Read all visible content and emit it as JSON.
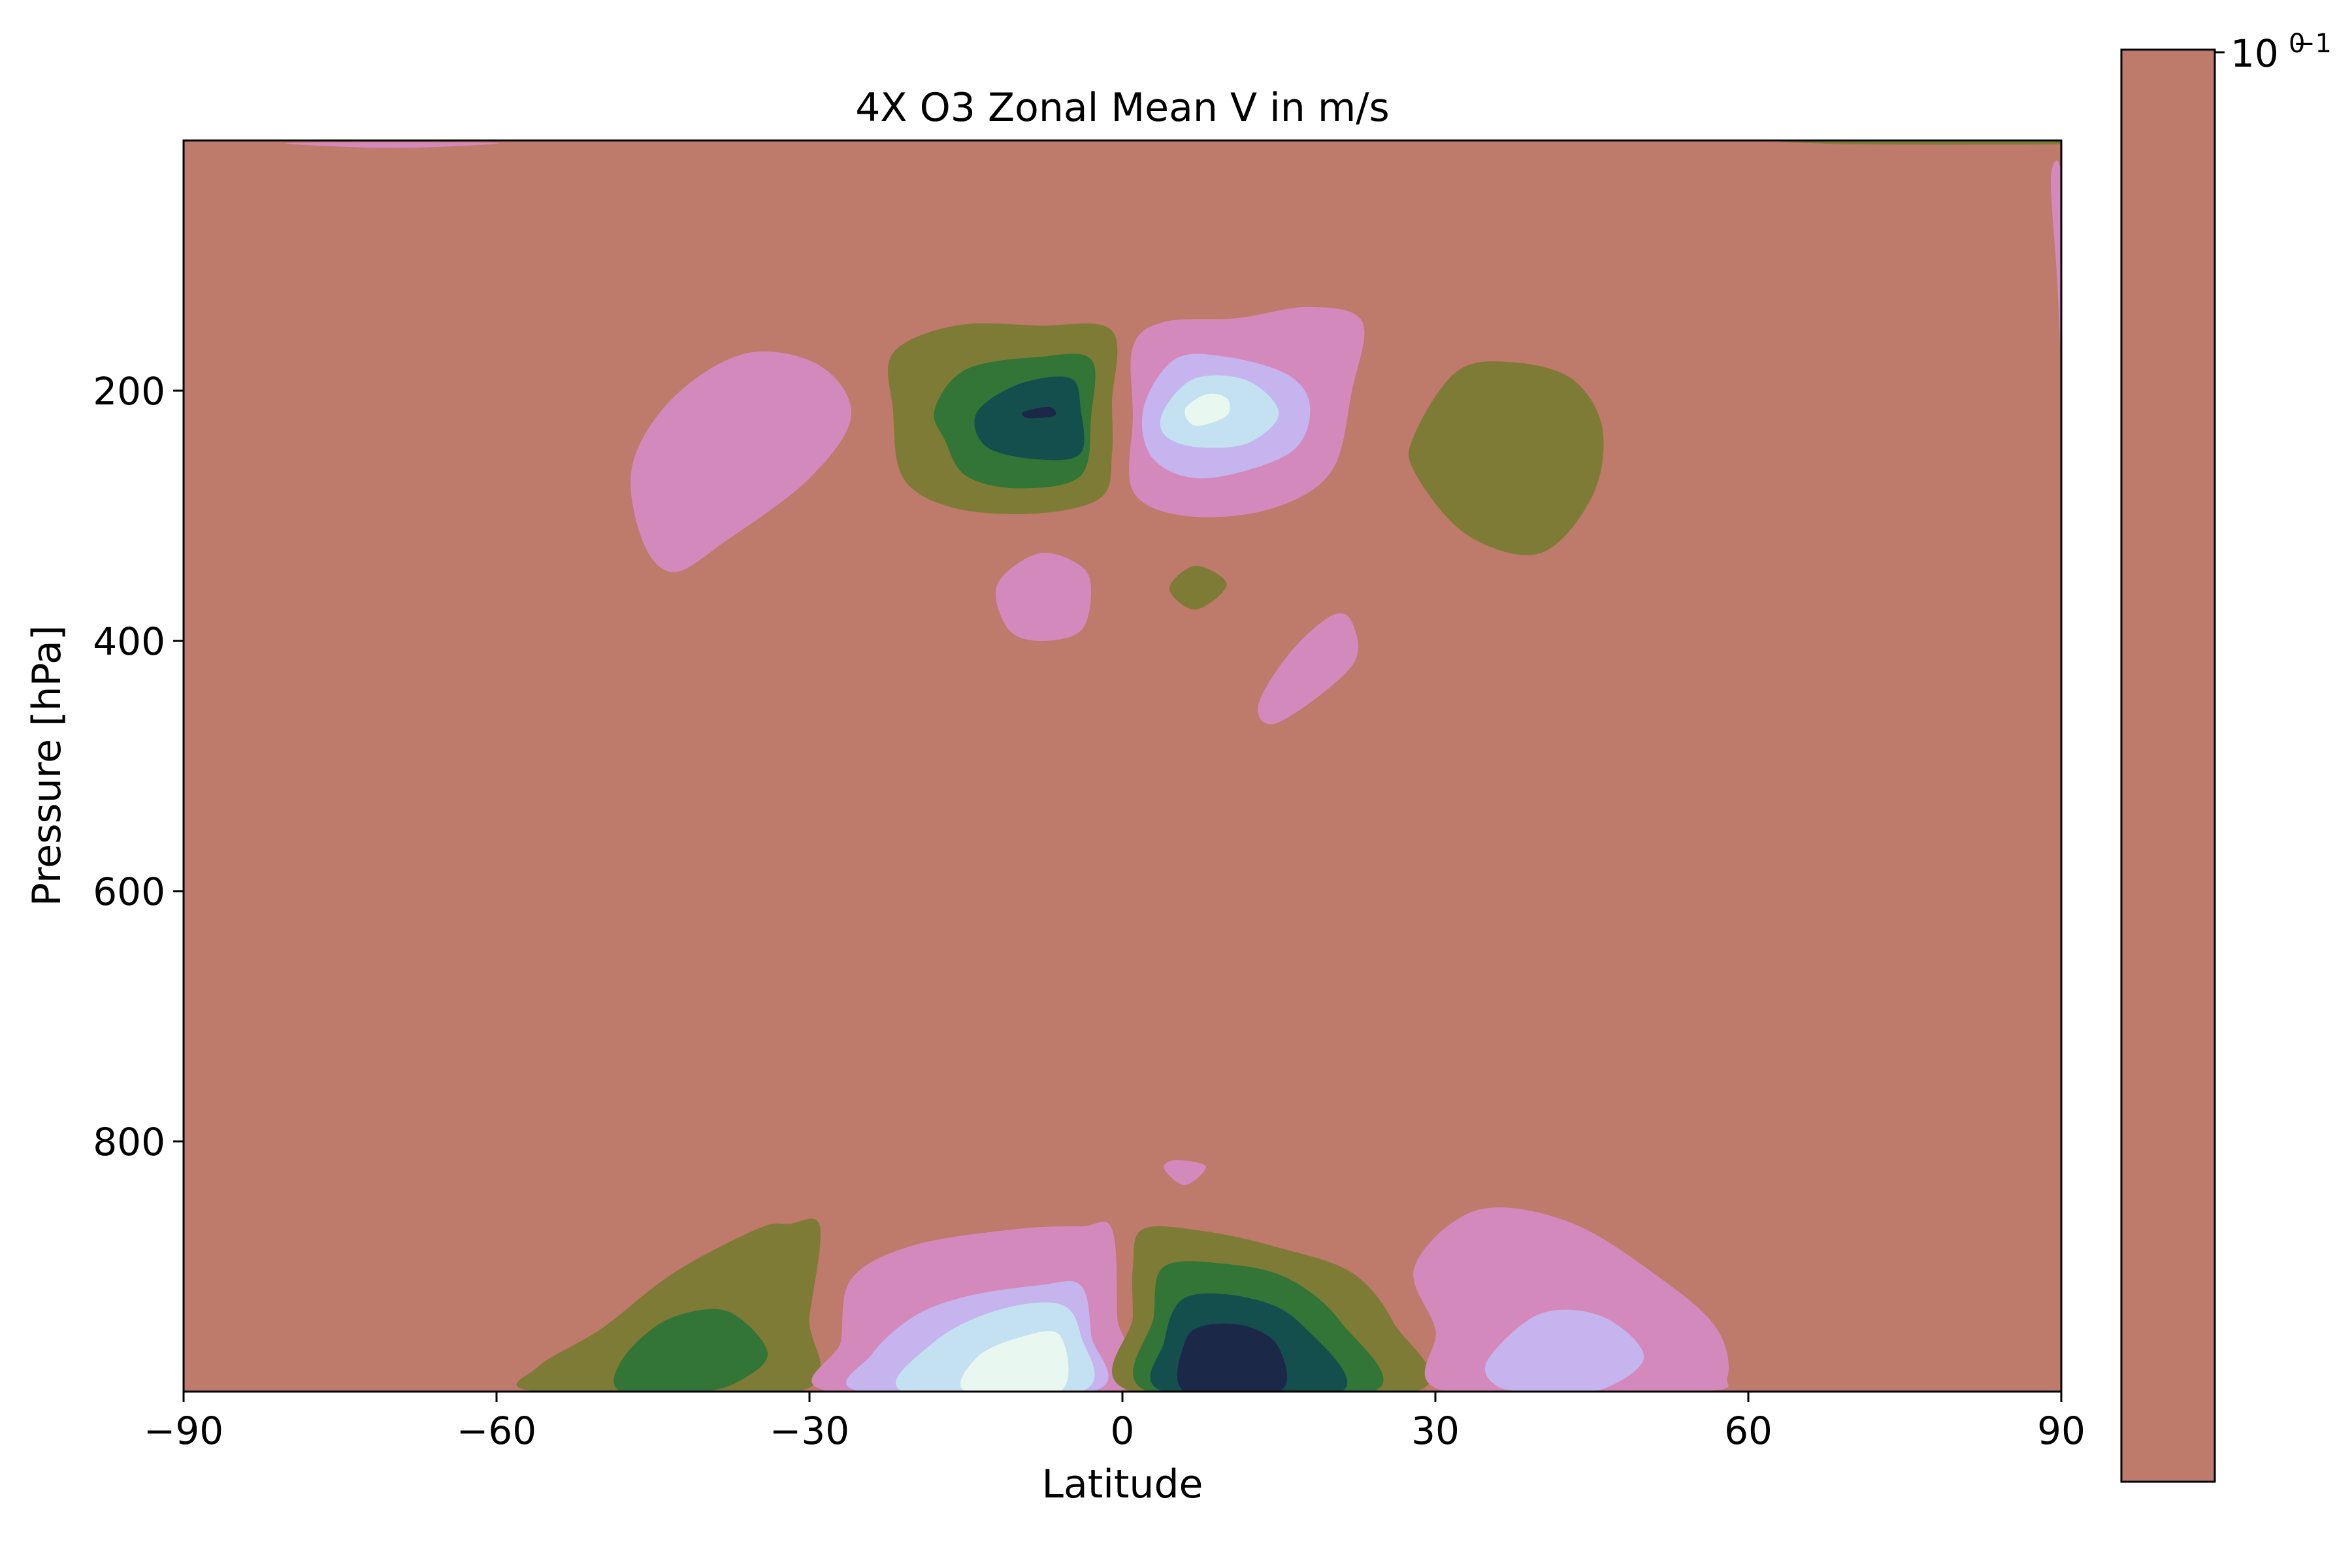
{
  "chart_data": {
    "type": "contour",
    "title": "4X O3 Zonal Mean V in m/s",
    "xlabel": "Latitude",
    "ylabel": "Pressure [hPa]",
    "xlim": [
      -90,
      90
    ],
    "ylim": [
      1000,
      0
    ],
    "y_inverted": true,
    "xticks": [
      -90,
      -60,
      -30,
      0,
      30,
      60,
      90
    ],
    "xtick_labels": [
      "−90",
      "−60",
      "−30",
      "0",
      "30",
      "60",
      "90"
    ],
    "yticks": [
      200,
      400,
      600,
      800
    ],
    "ytick_labels": [
      "200",
      "400",
      "600",
      "800"
    ],
    "colorbar": {
      "tick_labels": [
        "10",
        "0",
        "−1"
      ],
      "background_color": "#be7a6a"
    },
    "colors": {
      "background": "#be7a6a",
      "olive": "#7e7b37",
      "green": "#327536",
      "dark_teal": "#154f4d",
      "navy": "#1c2848",
      "pink": "#d489bc",
      "lavender": "#c5b4ee",
      "light_blue": "#c4e1f1",
      "mint": "#e8f7ef"
    },
    "contours": [
      {
        "color": "olive",
        "points": [
          [
            -35,
            870
          ],
          [
            -32,
            866
          ],
          [
            -29,
            868
          ],
          [
            -30,
            940
          ],
          [
            -31,
            1000
          ],
          [
            -56,
            1000
          ],
          [
            -56,
            980
          ],
          [
            -50,
            950
          ],
          [
            -43,
            905
          ]
        ]
      },
      {
        "color": "green",
        "points": [
          [
            -48,
            975
          ],
          [
            -44,
            944
          ],
          [
            -39,
            934
          ],
          [
            -36,
            946
          ],
          [
            -34,
            970
          ],
          [
            -36,
            988
          ],
          [
            -40,
            1000
          ],
          [
            -48,
            1000
          ]
        ]
      },
      {
        "color": "pink",
        "points": [
          [
            -26,
            910
          ],
          [
            -20,
            883
          ],
          [
            -10,
            870
          ],
          [
            -4,
            868
          ],
          [
            -1,
            870
          ],
          [
            -0.5,
            940
          ],
          [
            -0.5,
            1000
          ],
          [
            -28,
            1000
          ],
          [
            -27,
            960
          ]
        ]
      },
      {
        "color": "lavender",
        "points": [
          [
            -24,
            970
          ],
          [
            -20,
            940
          ],
          [
            -15,
            924
          ],
          [
            -8,
            915
          ],
          [
            -4,
            915
          ],
          [
            -3,
            955
          ],
          [
            -3,
            1000
          ],
          [
            -25,
            1000
          ]
        ]
      },
      {
        "color": "light_blue",
        "points": [
          [
            -21,
            1000
          ],
          [
            -18,
            960
          ],
          [
            -12,
            935
          ],
          [
            -6,
            930
          ],
          [
            -4,
            955
          ],
          [
            -4,
            1000
          ]
        ]
      },
      {
        "color": "mint",
        "points": [
          [
            -15,
            1000
          ],
          [
            -14,
            973
          ],
          [
            -10,
            957
          ],
          [
            -6,
            955
          ],
          [
            -6,
            1000
          ]
        ]
      },
      {
        "color": "olive",
        "points": [
          [
            1,
            1000
          ],
          [
            1,
            940
          ],
          [
            1,
            900
          ],
          [
            2,
            870
          ],
          [
            8,
            872
          ],
          [
            15,
            885
          ],
          [
            22,
            905
          ],
          [
            26,
            945
          ],
          [
            28,
            1000
          ]
        ]
      },
      {
        "color": "green",
        "points": [
          [
            2.5,
            1000
          ],
          [
            3,
            940
          ],
          [
            4,
            900
          ],
          [
            10,
            898
          ],
          [
            16,
            910
          ],
          [
            21,
            945
          ],
          [
            24,
            1000
          ]
        ]
      },
      {
        "color": "dark_teal",
        "points": [
          [
            4,
            1000
          ],
          [
            4,
            960
          ],
          [
            6,
            925
          ],
          [
            12,
            925
          ],
          [
            17,
            945
          ],
          [
            21,
            1000
          ]
        ]
      },
      {
        "color": "navy",
        "points": [
          [
            6,
            1000
          ],
          [
            6,
            960
          ],
          [
            8,
            947
          ],
          [
            12,
            948
          ],
          [
            15,
            965
          ],
          [
            15,
            1000
          ]
        ]
      },
      {
        "color": "pink",
        "points": [
          [
            28,
            900
          ],
          [
            34,
            855
          ],
          [
            43,
            865
          ],
          [
            52,
            912
          ],
          [
            57,
            950
          ],
          [
            58,
            988
          ],
          [
            55,
            1000
          ],
          [
            31,
            1000
          ],
          [
            30,
            950
          ]
        ]
      },
      {
        "color": "lavender",
        "points": [
          [
            35,
            975
          ],
          [
            40,
            938
          ],
          [
            46,
            940
          ],
          [
            50,
            972
          ],
          [
            46,
            998
          ],
          [
            40,
            1000
          ],
          [
            36,
            996
          ]
        ]
      },
      {
        "color": "pink",
        "points": [
          [
            5,
            815
          ],
          [
            8,
            820
          ],
          [
            6,
            835
          ],
          [
            4,
            822
          ]
        ]
      },
      {
        "color": "olive",
        "points": [
          [
            -22,
            170
          ],
          [
            -16,
            148
          ],
          [
            -8,
            148
          ],
          [
            -1,
            152
          ],
          [
            -1,
            210
          ],
          [
            -1,
            250
          ],
          [
            -2,
            285
          ],
          [
            -8,
            298
          ],
          [
            -16,
            294
          ],
          [
            -21,
            270
          ],
          [
            -22,
            215
          ]
        ]
      },
      {
        "color": "green",
        "points": [
          [
            -18,
            215
          ],
          [
            -15,
            183
          ],
          [
            -8,
            173
          ],
          [
            -3,
            175
          ],
          [
            -3,
            220
          ],
          [
            -4,
            268
          ],
          [
            -10,
            278
          ],
          [
            -15,
            268
          ],
          [
            -17,
            240
          ]
        ]
      },
      {
        "color": "dark_teal",
        "points": [
          [
            -14,
            218
          ],
          [
            -10,
            195
          ],
          [
            -5,
            190
          ],
          [
            -4,
            215
          ],
          [
            -4,
            250
          ],
          [
            -8,
            255
          ],
          [
            -13,
            245
          ]
        ]
      },
      {
        "color": "navy",
        "points": [
          [
            -9.5,
            217
          ],
          [
            -7,
            213
          ],
          [
            -6.5,
            220
          ],
          [
            -9,
            222
          ]
        ]
      },
      {
        "color": "pink",
        "points": [
          [
            1,
            165
          ],
          [
            4,
            145
          ],
          [
            11,
            142
          ],
          [
            18,
            133
          ],
          [
            23,
            145
          ],
          [
            22,
            200
          ],
          [
            20,
            265
          ],
          [
            14,
            295
          ],
          [
            6,
            300
          ],
          [
            1,
            280
          ],
          [
            1,
            220
          ]
        ]
      },
      {
        "color": "lavender",
        "points": [
          [
            2,
            215
          ],
          [
            5,
            175
          ],
          [
            10,
            173
          ],
          [
            16,
            188
          ],
          [
            18,
            215
          ],
          [
            16,
            250
          ],
          [
            8,
            270
          ],
          [
            3,
            255
          ]
        ]
      },
      {
        "color": "light_blue",
        "points": [
          [
            4,
            215
          ],
          [
            7,
            190
          ],
          [
            12,
            192
          ],
          [
            15,
            218
          ],
          [
            12,
            242
          ],
          [
            7,
            245
          ],
          [
            4,
            235
          ]
        ]
      },
      {
        "color": "mint",
        "points": [
          [
            6,
            215
          ],
          [
            8,
            203
          ],
          [
            10,
            206
          ],
          [
            10,
            220
          ],
          [
            7,
            228
          ]
        ]
      },
      {
        "color": "pink",
        "points": [
          [
            -47,
            260
          ],
          [
            -43,
            205
          ],
          [
            -36,
            170
          ],
          [
            -29,
            180
          ],
          [
            -26,
            220
          ],
          [
            -30,
            270
          ],
          [
            -38,
            320
          ],
          [
            -43,
            345
          ],
          [
            -46,
            320
          ]
        ]
      },
      {
        "color": "olive",
        "points": [
          [
            28,
            235
          ],
          [
            32,
            185
          ],
          [
            37,
            177
          ],
          [
            43,
            190
          ],
          [
            46,
            230
          ],
          [
            45,
            285
          ],
          [
            40,
            330
          ],
          [
            33,
            315
          ],
          [
            28,
            265
          ]
        ]
      },
      {
        "color": "pink",
        "points": [
          [
            -12,
            355
          ],
          [
            -8,
            330
          ],
          [
            -4,
            340
          ],
          [
            -3,
            360
          ],
          [
            -4,
            392
          ],
          [
            -8,
            400
          ],
          [
            -11,
            390
          ]
        ]
      },
      {
        "color": "olive",
        "points": [
          [
            4.5,
            358
          ],
          [
            7,
            340
          ],
          [
            10,
            355
          ],
          [
            7,
            375
          ]
        ]
      },
      {
        "color": "pink",
        "points": [
          [
            13,
            452
          ],
          [
            16,
            410
          ],
          [
            20,
            380
          ],
          [
            22,
            385
          ],
          [
            22,
            420
          ],
          [
            15,
            465
          ]
        ]
      },
      {
        "color": "pink",
        "points": [
          [
            -80,
            2
          ],
          [
            -60,
            2
          ],
          [
            -70,
            6
          ]
        ]
      },
      {
        "color": "olive",
        "points": [
          [
            64,
            0
          ],
          [
            90,
            0
          ],
          [
            90,
            3
          ],
          [
            70,
            3
          ]
        ]
      },
      {
        "color": "pink",
        "points": [
          [
            89,
            30
          ],
          [
            90,
            30
          ],
          [
            90,
            170
          ],
          [
            89.6,
            110
          ]
        ]
      }
    ]
  }
}
